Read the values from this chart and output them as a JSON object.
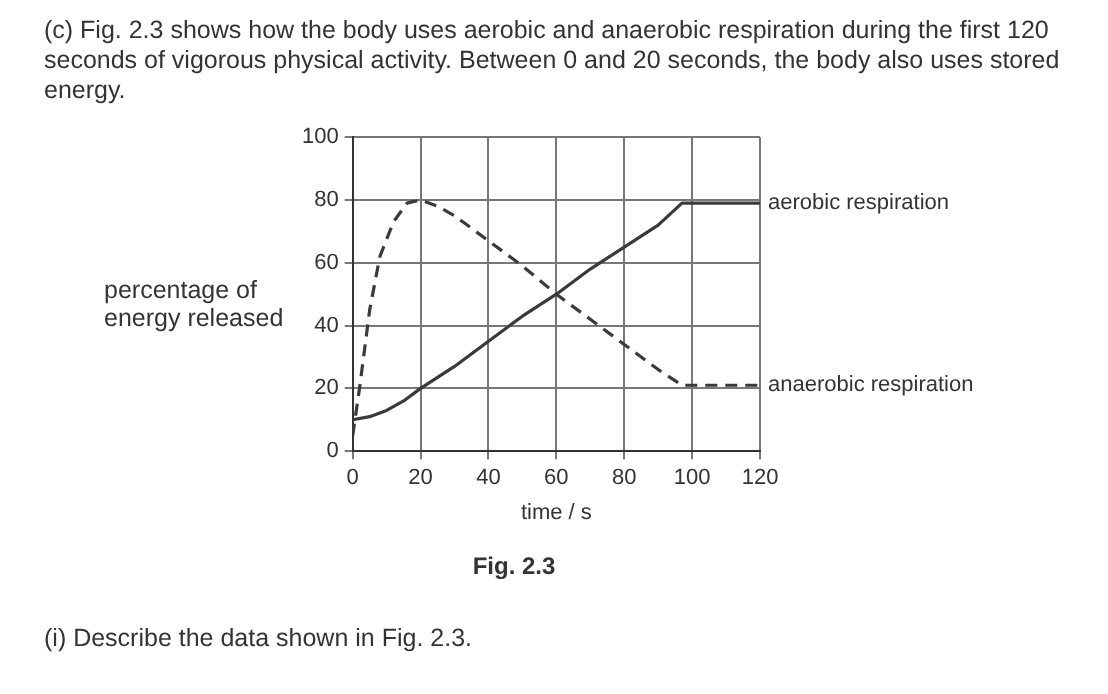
{
  "chart_data": {
    "type": "line",
    "title": "(c) Fig. 2.3 shows how the body uses aerobic and anaerobic respiration during the first 120 seconds of vigorous physical activity. Between 0 and 20 seconds, the body also uses stored energy.",
    "xlabel": "time / s",
    "ylabel": "percentage of energy released",
    "xlim": [
      0,
      120
    ],
    "xticks": [
      0,
      20,
      40,
      60,
      80,
      100,
      120
    ],
    "ylim": [
      0,
      100
    ],
    "yticks": [
      0,
      20,
      40,
      60,
      80,
      100
    ],
    "grid": true,
    "legend": false,
    "marker": "none",
    "series": [
      {
        "name": "aerobic respiration",
        "color": "#3a3a3a",
        "line_style": "solid",
        "x": [
          0,
          5,
          10,
          15,
          20,
          30,
          40,
          50,
          60,
          70,
          80,
          90,
          97,
          120
        ],
        "values": [
          10,
          11,
          13,
          16,
          20,
          27,
          35,
          43,
          50,
          58,
          65,
          72,
          79,
          79
        ]
      },
      {
        "name": "anaerobic respiration",
        "color": "#3a3a3a",
        "line_style": "dashed",
        "x": [
          0,
          2,
          5,
          8,
          12,
          16,
          20,
          25,
          30,
          40,
          50,
          60,
          70,
          80,
          90,
          97,
          100,
          120
        ],
        "values": [
          5,
          20,
          45,
          62,
          73,
          79,
          80,
          78,
          75,
          67,
          59,
          50,
          42,
          34,
          26,
          21,
          21,
          21
        ]
      }
    ],
    "annotations": [
      "Fig. 2.3",
      "(i) Describe the data shown in Fig. 2.3."
    ]
  }
}
